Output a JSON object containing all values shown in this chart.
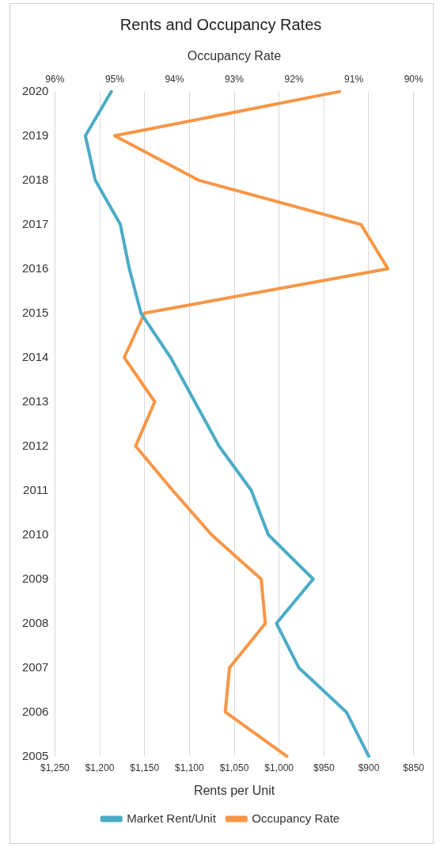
{
  "chart_data": {
    "type": "line",
    "title": "Rents and Occupancy Rates",
    "xlabel": "Rents per Unit",
    "x2label": "Occupancy Rate",
    "orientation": "horizontal",
    "categories": [
      "2020",
      "2019",
      "2018",
      "2017",
      "2016",
      "2015",
      "2014",
      "2013",
      "2012",
      "2011",
      "2010",
      "2009",
      "2008",
      "2007",
      "2006",
      "2005"
    ],
    "series": [
      {
        "name": "Market Rent/Unit",
        "color": "#4bacc6",
        "values": [
          1187,
          1216,
          1205,
          1177,
          1167,
          1154,
          1121,
          1094,
          1067,
          1031,
          1012,
          962,
          1003,
          978,
          925,
          900
        ]
      },
      {
        "name": "Occupancy Rate",
        "color": "#f79646",
        "axis": "x2",
        "values": [
          91.24,
          95.0,
          93.6,
          90.88,
          90.43,
          94.5,
          94.84,
          94.33,
          94.65,
          94.03,
          93.38,
          92.55,
          92.48,
          93.08,
          93.15,
          92.12
        ]
      }
    ],
    "xlim": [
      1250,
      850
    ],
    "xticks": [
      {
        "value": 1250,
        "label": "$1,250"
      },
      {
        "value": 1200,
        "label": "$1,200"
      },
      {
        "value": 1150,
        "label": "$1,150"
      },
      {
        "value": 1100,
        "label": "$1,100"
      },
      {
        "value": 1050,
        "label": "$1,050"
      },
      {
        "value": 1000,
        "label": "$1,000"
      },
      {
        "value": 950,
        "label": "$950"
      },
      {
        "value": 900,
        "label": "$900"
      },
      {
        "value": 850,
        "label": "$850"
      }
    ],
    "x2lim": [
      96,
      90
    ],
    "x2ticks": [
      {
        "value": 96,
        "label": "96%"
      },
      {
        "value": 95,
        "label": "95%"
      },
      {
        "value": 94,
        "label": "94%"
      },
      {
        "value": 93,
        "label": "93%"
      },
      {
        "value": 92,
        "label": "92%"
      },
      {
        "value": 91,
        "label": "91%"
      },
      {
        "value": 90,
        "label": "90%"
      }
    ],
    "grid": "x",
    "legend": "bottom",
    "line_style": "solid"
  }
}
